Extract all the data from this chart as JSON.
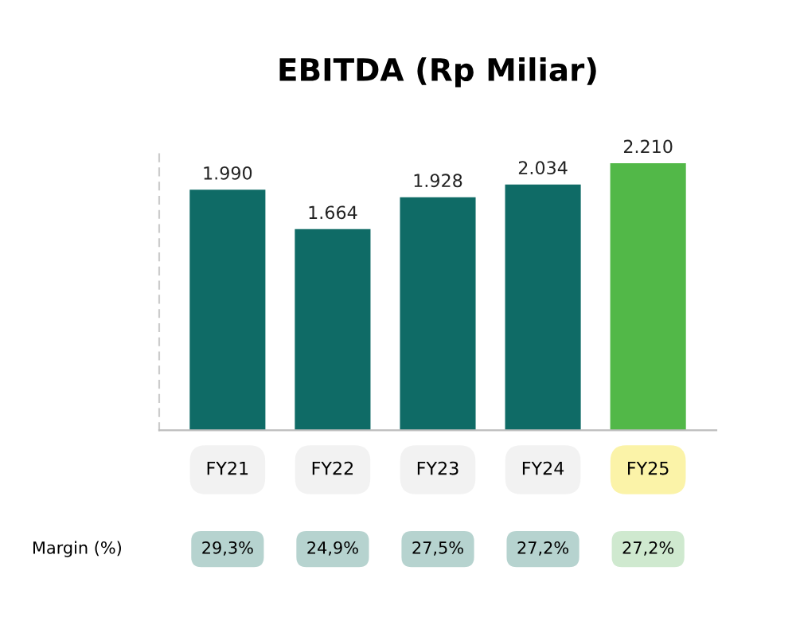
{
  "chart_data": {
    "type": "bar",
    "title": "EBITDA (Rp Miliar)",
    "categories": [
      "FY21",
      "FY22",
      "FY23",
      "FY24",
      "FY25"
    ],
    "values": [
      1990,
      1664,
      1928,
      2034,
      2210
    ],
    "value_labels": [
      "1.990",
      "1.664",
      "1.928",
      "2.034",
      "2.210"
    ],
    "colors": [
      "#0f6b66",
      "#0f6b66",
      "#0f6b66",
      "#0f6b66",
      "#52b848"
    ],
    "annotations": [
      "Margin (%)",
      "29,3%",
      "24,9%",
      "27,5%",
      "27,2%",
      "27,2%"
    ],
    "grid": false,
    "legend": false
  }
}
